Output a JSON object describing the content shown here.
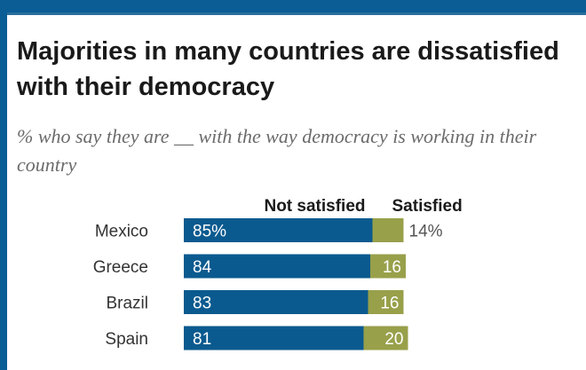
{
  "title": "Majorities in many countries are dissatisfied with their democracy",
  "subtitle": "% who say they are __ with the way democracy is working in their country",
  "colors": {
    "not_satisfied": "#0b5a8f",
    "satisfied": "#98a04a",
    "frame": "#0b5d96"
  },
  "chart_data": {
    "type": "bar",
    "orientation": "horizontal",
    "stacked": true,
    "categories": [
      "Mexico",
      "Greece",
      "Brazil",
      "Spain"
    ],
    "series": [
      {
        "name": "Not satisfied",
        "values": [
          85,
          84,
          83,
          81
        ],
        "labels": [
          "85%",
          "84",
          "83",
          "81"
        ]
      },
      {
        "name": "Satisfied",
        "values": [
          14,
          16,
          16,
          20
        ],
        "labels": [
          "14%",
          "16",
          "16",
          "20"
        ]
      }
    ],
    "xlim": [
      0,
      100
    ],
    "grid": false,
    "legend": "top"
  }
}
